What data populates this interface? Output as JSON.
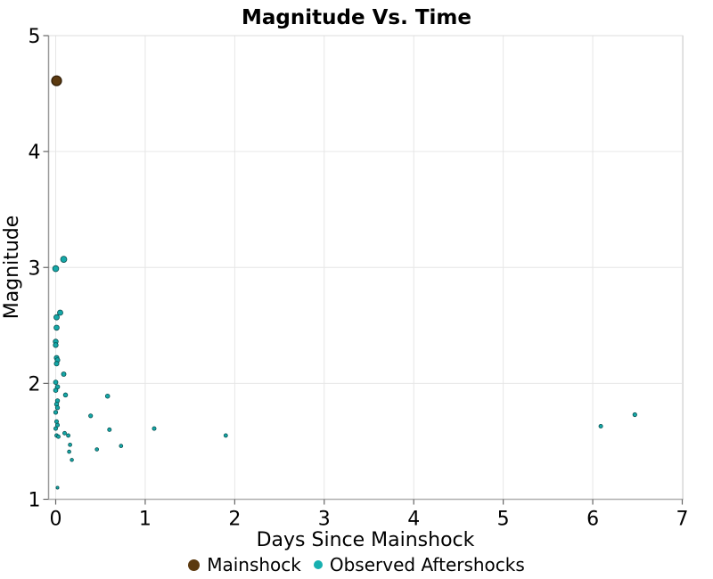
{
  "chart_data": {
    "type": "scatter",
    "title": "Magnitude Vs. Time",
    "xlabel": "Days Since Mainshock",
    "ylabel": "Magnitude",
    "xlim": [
      0,
      7
    ],
    "ylim": [
      1,
      5
    ],
    "x_ticks": [
      0,
      1,
      2,
      3,
      4,
      5,
      6,
      7
    ],
    "y_ticks": [
      1,
      2,
      3,
      4,
      5
    ],
    "grid": true,
    "legend_position": "bottom-center",
    "marker_size": "proportional to magnitude",
    "series": [
      {
        "name": "Mainshock",
        "color": "#5c3a10",
        "edge_color": "#2e1c06",
        "points": [
          [
            0.01,
            4.61
          ]
        ]
      },
      {
        "name": "Observed Aftershocks",
        "color": "#14a8a8",
        "edge_color": "#0a4f4f",
        "points": [
          [
            0.0,
            2.99
          ],
          [
            0.09,
            3.07
          ],
          [
            0.05,
            2.61
          ],
          [
            0.01,
            2.57
          ],
          [
            0.01,
            2.48
          ],
          [
            0.0,
            2.36
          ],
          [
            0.0,
            2.33
          ],
          [
            0.01,
            2.22
          ],
          [
            0.02,
            2.2
          ],
          [
            0.01,
            2.17
          ],
          [
            0.09,
            2.08
          ],
          [
            0.0,
            2.01
          ],
          [
            0.02,
            1.97
          ],
          [
            0.0,
            1.94
          ],
          [
            0.11,
            1.9
          ],
          [
            0.58,
            1.89
          ],
          [
            0.02,
            1.85
          ],
          [
            0.01,
            1.82
          ],
          [
            0.02,
            1.79
          ],
          [
            0.0,
            1.75
          ],
          [
            0.39,
            1.72
          ],
          [
            0.01,
            1.67
          ],
          [
            0.02,
            1.64
          ],
          [
            0.0,
            1.61
          ],
          [
            1.1,
            1.61
          ],
          [
            0.6,
            1.6
          ],
          [
            0.1,
            1.57
          ],
          [
            0.01,
            1.55
          ],
          [
            0.14,
            1.55
          ],
          [
            0.03,
            1.54
          ],
          [
            1.9,
            1.55
          ],
          [
            0.16,
            1.47
          ],
          [
            0.73,
            1.46
          ],
          [
            0.46,
            1.43
          ],
          [
            0.15,
            1.41
          ],
          [
            0.18,
            1.34
          ],
          [
            6.09,
            1.63
          ],
          [
            6.47,
            1.73
          ],
          [
            0.02,
            1.1
          ]
        ]
      }
    ],
    "style": {
      "background": "#ffffff",
      "grid_color": "#e6e6e6",
      "spine_left_color": "#9a9a9a",
      "spine_bottom_color": "#b0b0b0",
      "spine_top_right_color": "#dcdcdc",
      "tick_color": "#666666",
      "text_color": "#000000"
    }
  }
}
